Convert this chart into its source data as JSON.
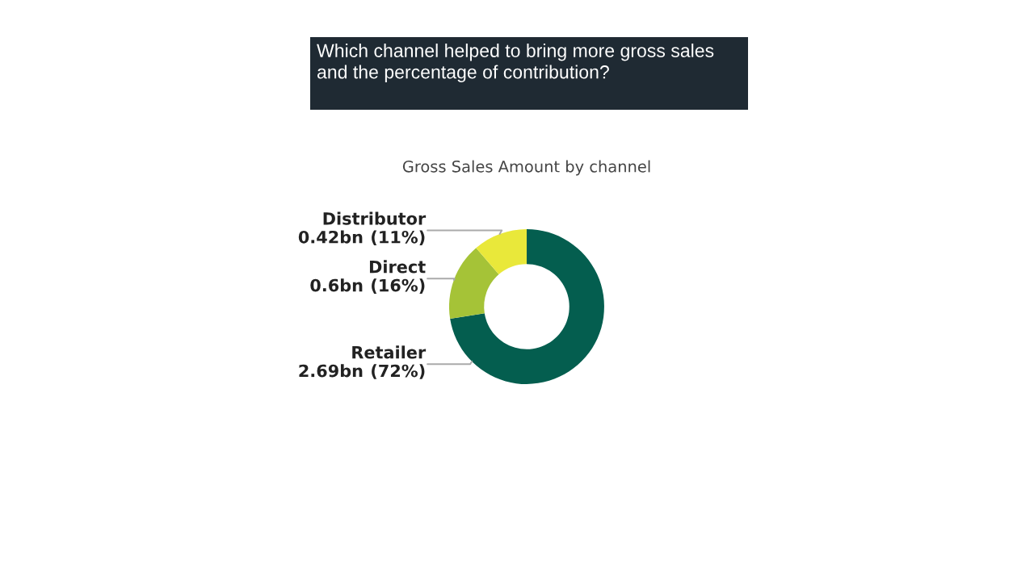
{
  "chart_data": {
    "type": "donut",
    "title": "Which channel helped to bring more gross sales and the percentage of contribution?",
    "subtitle": "Gross Sales Amount by channel",
    "categories": [
      "Retailer",
      "Direct",
      "Distributor"
    ],
    "values": [
      2.69,
      0.6,
      0.42
    ],
    "value_labels": [
      "2.69bn",
      "0.6bn",
      "0.42bn"
    ],
    "annotations": [
      "(72%)",
      "(16%)",
      "(11%)"
    ],
    "colors": [
      "#045e4f",
      "#a5c337",
      "#e9e83a"
    ],
    "legend": false
  }
}
